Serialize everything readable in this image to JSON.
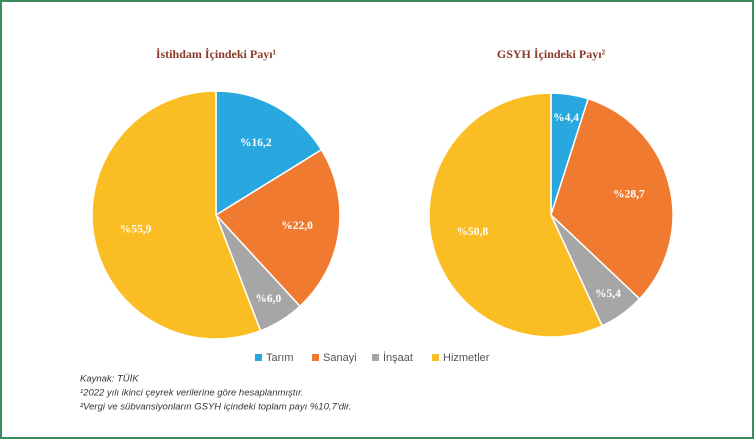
{
  "chart_data": [
    {
      "type": "pie",
      "title": "İstihdam İçindeki Payı¹",
      "categories": [
        "Tarım",
        "Sanayi",
        "İnşaat",
        "Hizmetler"
      ],
      "values": [
        16.2,
        22.0,
        6.0,
        55.9
      ],
      "value_labels": [
        "%16,2",
        "%22,0",
        "%6,0",
        "%55,9"
      ],
      "colors": [
        "#29a8e0",
        "#f07a2f",
        "#a6a6a6",
        "#fbbd24"
      ]
    },
    {
      "type": "pie",
      "title": "GSYH İçindeki Payı²",
      "categories": [
        "Tarım",
        "Sanayi",
        "İnşaat",
        "Hizmetler"
      ],
      "values": [
        4.4,
        28.7,
        5.4,
        50.8
      ],
      "value_labels": [
        "%4,4",
        "%28,7",
        "%5,4",
        "%50,8"
      ],
      "colors": [
        "#29a8e0",
        "#f07a2f",
        "#a6a6a6",
        "#fbbd24"
      ]
    }
  ],
  "notes": [
    "Kaynak: TÜİK",
    "¹2022 yılı ikinci çeyrek verilerine göre hesaplanmıştır.",
    "²Vergi ve sübvansiyonların GSYH içindeki toplam payı %10,7'dir."
  ]
}
